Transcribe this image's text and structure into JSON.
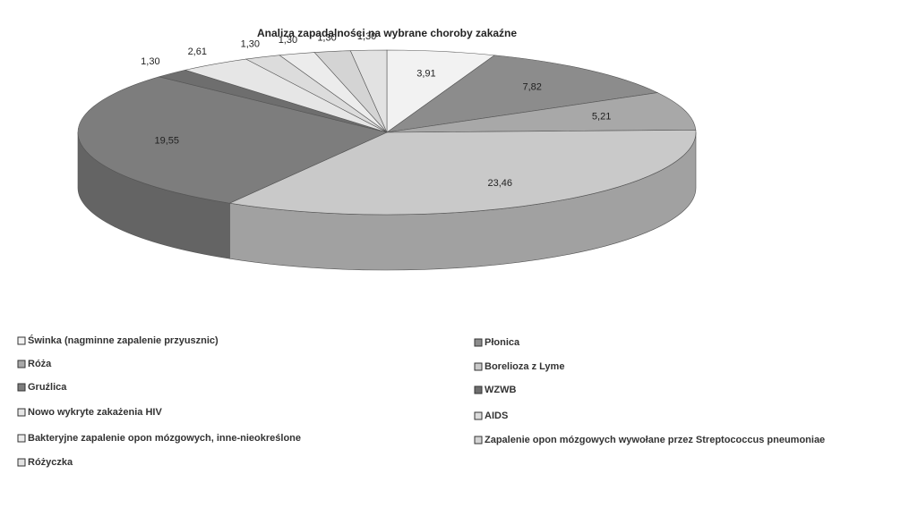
{
  "chart_data": {
    "type": "pie3d",
    "title": "Analiza zapadalności na wybrane choroby zakaźne",
    "categories": [
      "Świnka (nagminne zapalenie przyusznic)",
      "Płonica",
      "Róża",
      "Borelioza z Lyme",
      "Gruźlica",
      "WZWB",
      "Nowo wykryte zakażenia  HIV",
      "AIDS",
      "Bakteryjne zapalenie opon mózgowych, inne-nieokreślone",
      "Zapalenie opon mózgowych wywołane przez Streptococcus pneumoniae",
      "Różyczka"
    ],
    "values": [
      3.91,
      7.82,
      5.21,
      23.46,
      19.55,
      1.3,
      2.61,
      1.3,
      1.3,
      1.3,
      1.3
    ],
    "value_labels": [
      "3,91",
      "7,82",
      "5,21",
      "23,46",
      "19,55",
      "1,30",
      "2,61",
      "1,30",
      "1,30",
      "1,30",
      "1,30"
    ],
    "colors": [
      "#f2f2f2",
      "#8c8c8c",
      "#a8a8a8",
      "#c9c9c9",
      "#7d7d7d",
      "#6e6e6e",
      "#e6e6e6",
      "#dcdcdc",
      "#ececec",
      "#d4d4d4",
      "#e2e2e2"
    ],
    "legend": "bottom"
  }
}
